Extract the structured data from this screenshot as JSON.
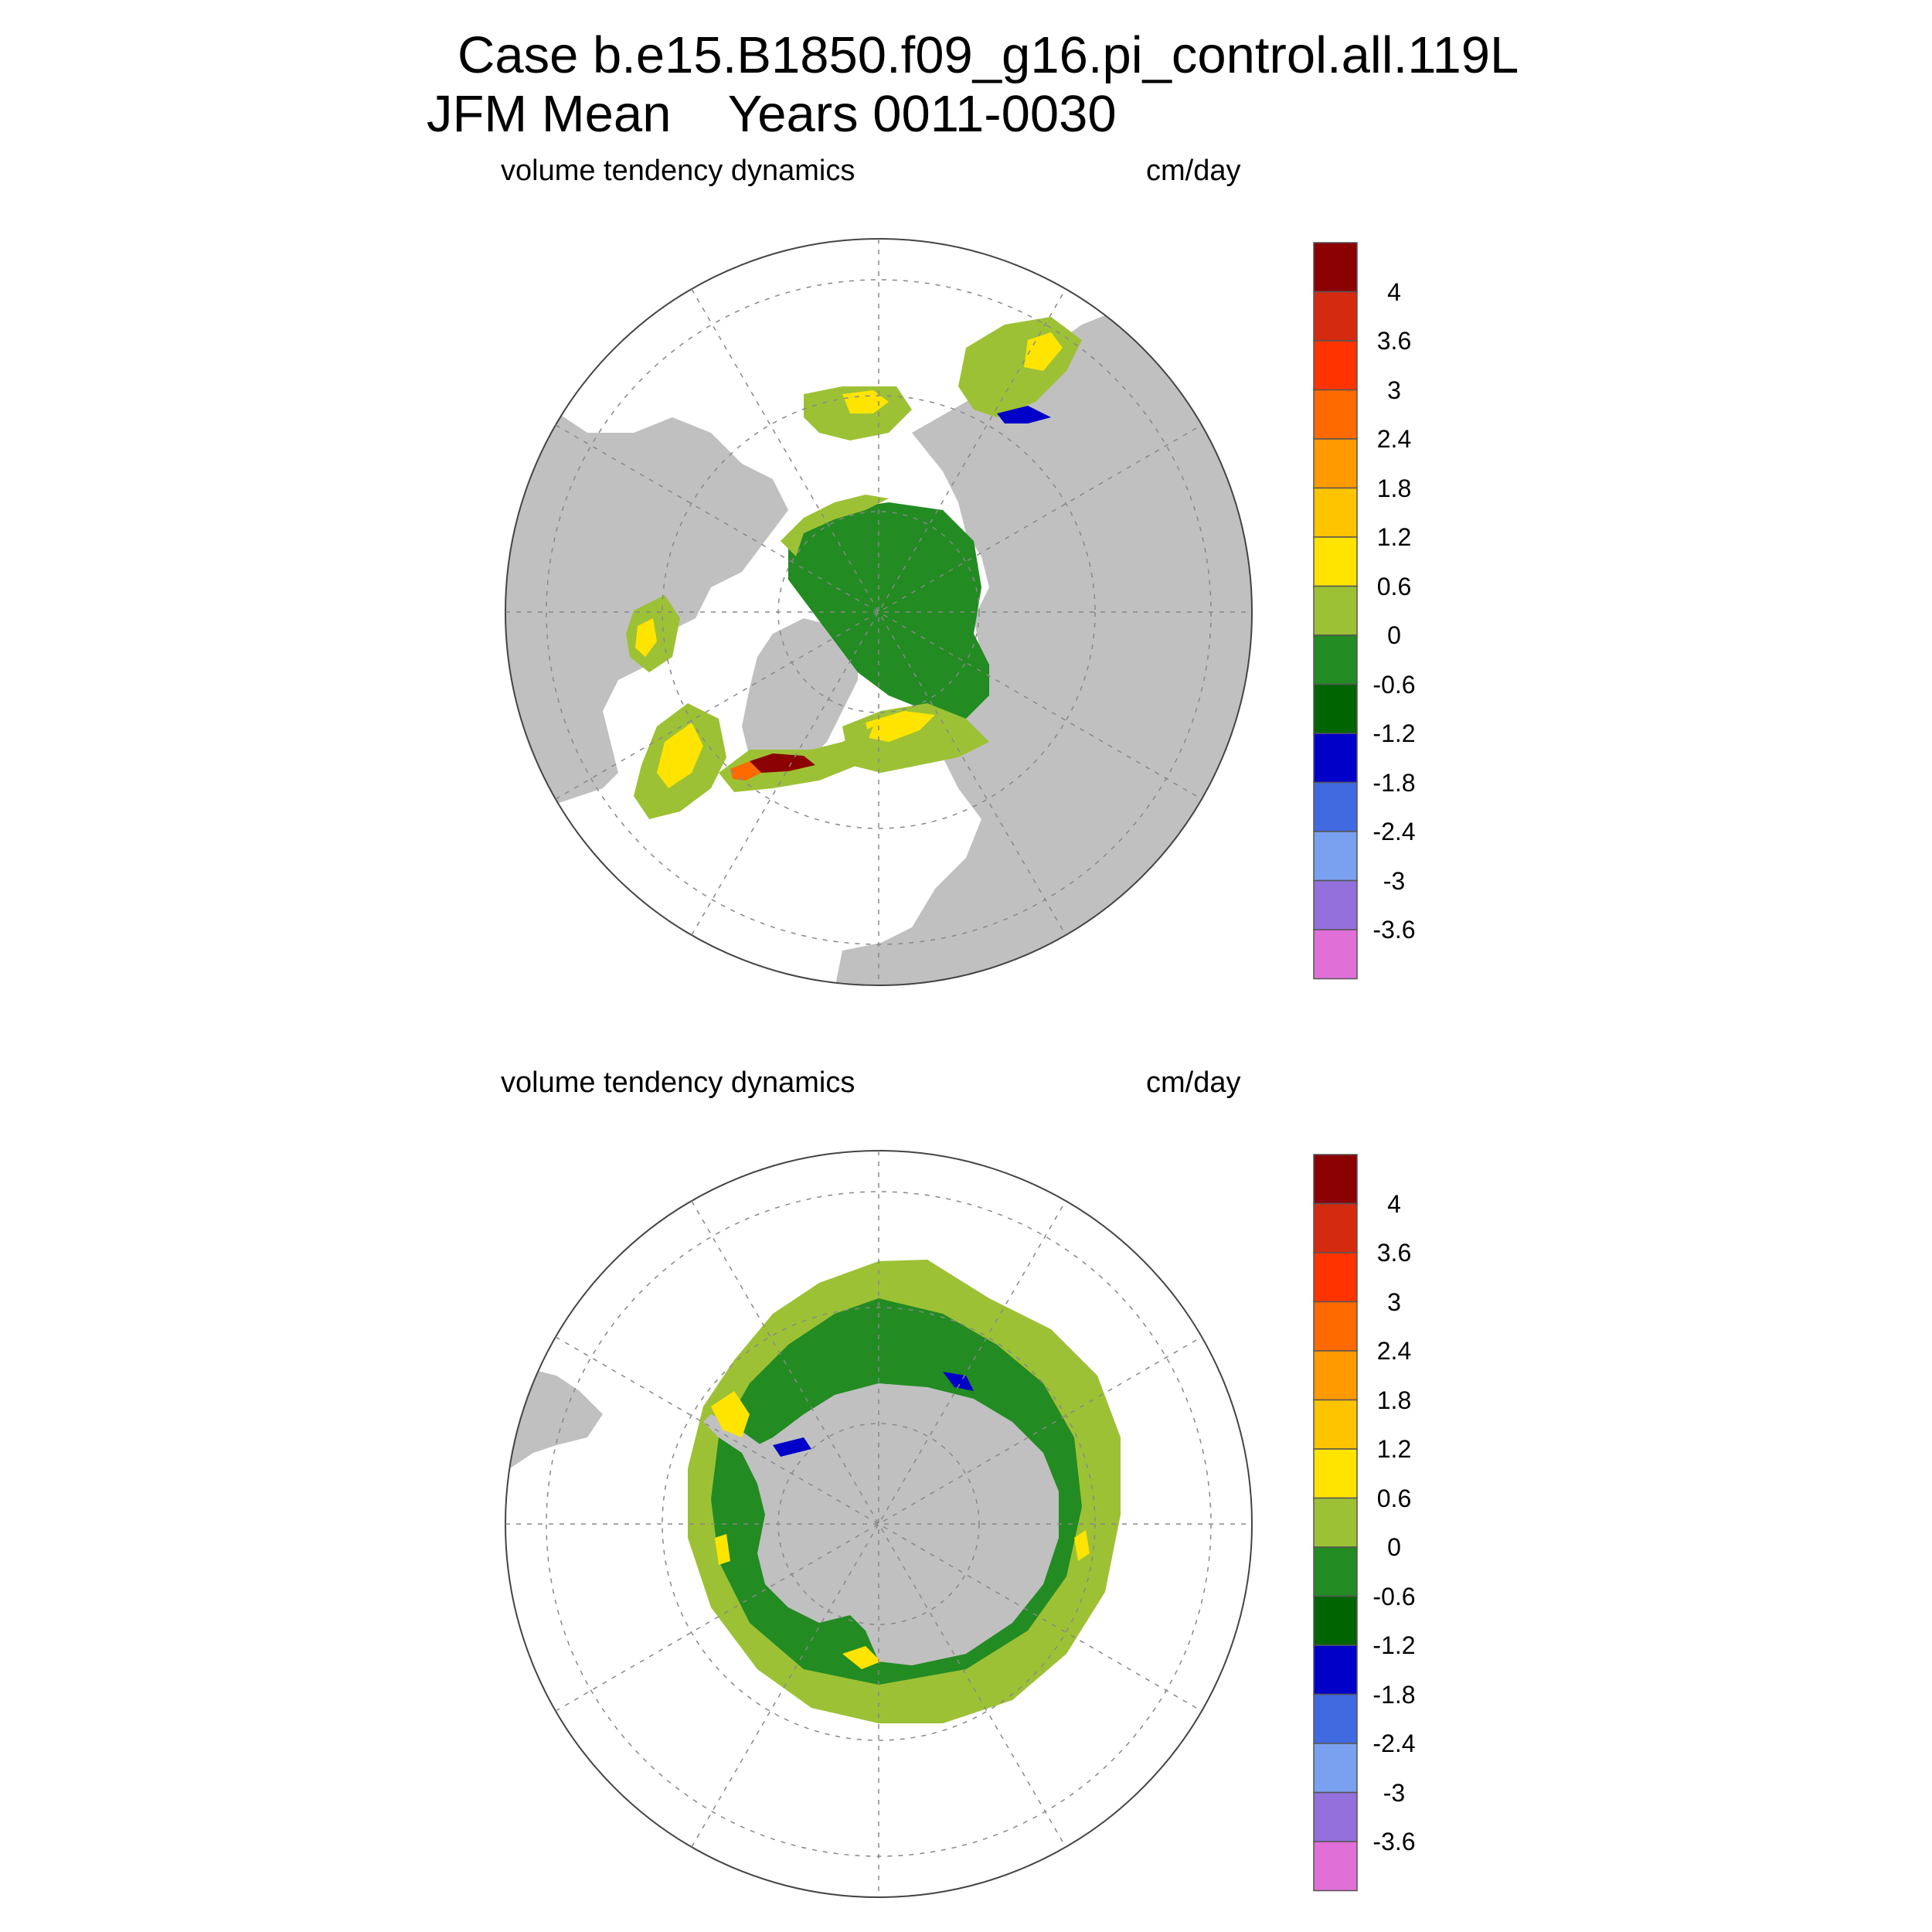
{
  "title": {
    "line1": "Case b.e15.B1850.f09_g16.pi_control.all.119L",
    "line2": "JFM Mean    Years 0011-0030"
  },
  "panels": [
    {
      "id": "north",
      "left_label": "volume tendency dynamics",
      "right_label": "cm/day",
      "hemisphere": "northern"
    },
    {
      "id": "south",
      "left_label": "volume tendency dynamics",
      "right_label": "cm/day",
      "hemisphere": "southern"
    }
  ],
  "colorbar": {
    "labels": [
      "4",
      "3.6",
      "3",
      "2.4",
      "1.8",
      "1.2",
      "0.6",
      "0",
      "-0.6",
      "-1.2",
      "-1.8",
      "-2.4",
      "-3",
      "-3.6"
    ],
    "colors": [
      "#8b0000",
      "#d42a10",
      "#ff3300",
      "#ff6a00",
      "#ff9a00",
      "#ffc400",
      "#ffe400",
      "#9dc135",
      "#228b22",
      "#006400",
      "#0000c8",
      "#4169e1",
      "#7aa0f0",
      "#9370db",
      "#e070d8"
    ]
  },
  "colors": {
    "land": "#c0c0c0",
    "ocean": "#ffffff",
    "grid": "#888888"
  }
}
